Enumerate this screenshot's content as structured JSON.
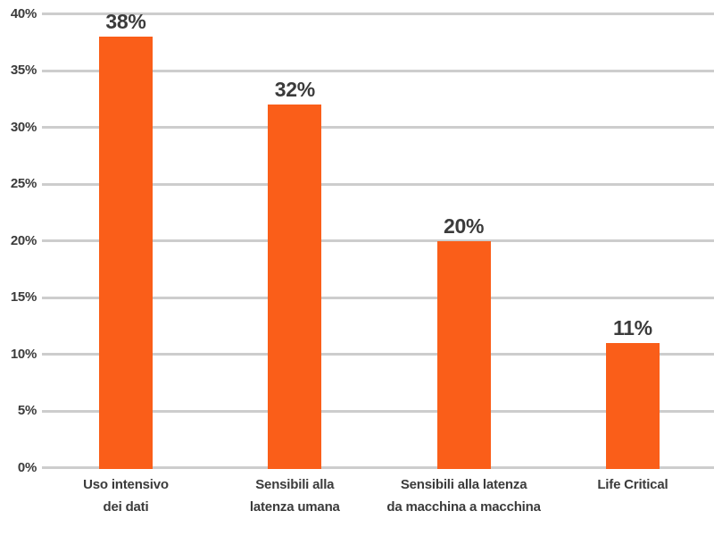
{
  "chart_data": {
    "type": "bar",
    "title": "",
    "xlabel": "",
    "ylabel": "",
    "categories": [
      "Uso intensivo dei dati",
      "Sensibili alla latenza umana",
      "Sensibili alla latenza da macchina a macchina",
      "Life Critical"
    ],
    "category_lines": [
      [
        "Uso intensivo",
        "dei dati"
      ],
      [
        "Sensibili alla",
        "latenza umana"
      ],
      [
        "Sensibili alla latenza",
        "da macchina a macchina"
      ],
      [
        "Life Critical"
      ]
    ],
    "values": [
      38,
      32,
      20,
      11
    ],
    "value_labels": [
      "38%",
      "32%",
      "20%",
      "11%"
    ],
    "ylim": [
      0,
      40
    ],
    "ytick_step": 5,
    "ytick_values": [
      0,
      5,
      10,
      15,
      20,
      25,
      30,
      35,
      40
    ],
    "ytick_labels": [
      "0%",
      "5%",
      "10%",
      "15%",
      "20%",
      "25%",
      "30%",
      "35%",
      "40%"
    ],
    "grid": "horizontal",
    "legend": "none",
    "colors": {
      "bar": "#FA5E19",
      "grid": "#CDCDCD",
      "text": "#3B3B3B",
      "background": "#FFFFFF"
    }
  }
}
